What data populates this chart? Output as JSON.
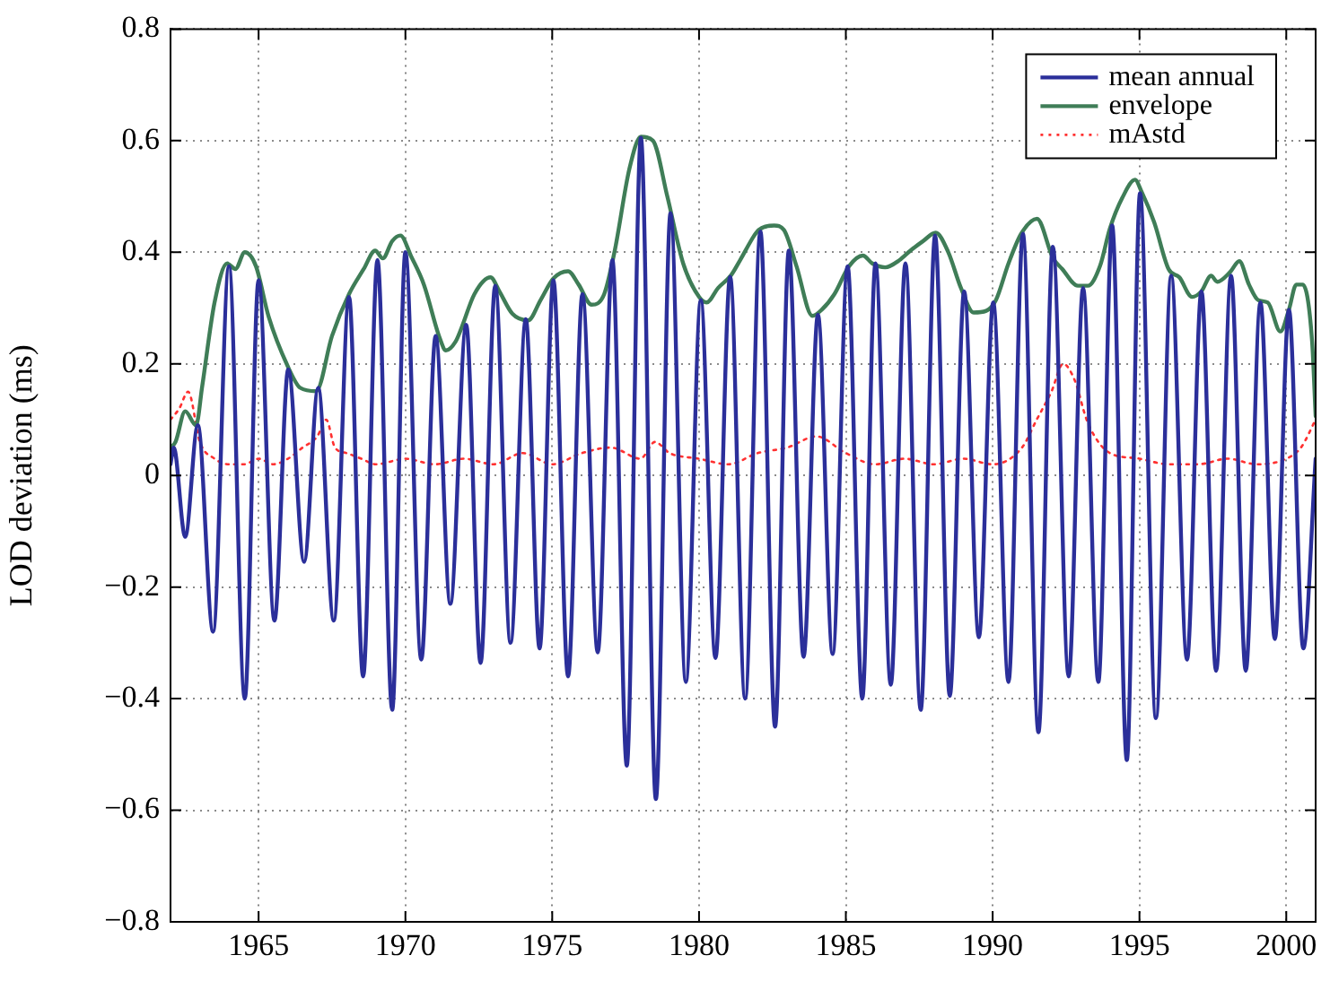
{
  "chart_data": {
    "type": "line",
    "ylabel": "LOD deviation (ms)",
    "xlim": [
      1962,
      2001
    ],
    "ylim": [
      -0.8,
      0.8
    ],
    "xticks": [
      1965,
      1970,
      1975,
      1980,
      1985,
      1990,
      1995,
      2000
    ],
    "yticks": [
      {
        "value": -0.8,
        "label": "−0.8"
      },
      {
        "value": -0.6,
        "label": "−0.6"
      },
      {
        "value": -0.4,
        "label": "−0.4"
      },
      {
        "value": -0.2,
        "label": "−0.2"
      },
      0,
      0.2,
      0.4,
      0.6,
      0.8
    ],
    "grid": true,
    "legend": "top right",
    "series": [
      {
        "name": "mean annual",
        "color": "#2b2f9a",
        "line_style": "solid",
        "x": [
          1962.0,
          1962.11,
          1962.5,
          1962.93,
          1963.45,
          1963.99,
          1964.53,
          1965.0,
          1965.54,
          1966.01,
          1966.55,
          1967.03,
          1967.56,
          1968.08,
          1968.56,
          1969.05,
          1969.55,
          1970.0,
          1970.54,
          1971.03,
          1971.53,
          1972.07,
          1972.56,
          1973.06,
          1973.58,
          1974.1,
          1974.57,
          1975.04,
          1975.54,
          1976.03,
          1976.55,
          1977.05,
          1977.54,
          1978.02,
          1978.53,
          1979.03,
          1979.55,
          1980.06,
          1980.56,
          1981.06,
          1981.57,
          1982.09,
          1982.59,
          1983.06,
          1983.56,
          1984.05,
          1984.55,
          1985.06,
          1985.56,
          1986.01,
          1986.53,
          1987.03,
          1987.55,
          1988.04,
          1988.54,
          1989.03,
          1989.53,
          1990.02,
          1990.54,
          1991.03,
          1991.56,
          1992.05,
          1992.59,
          1993.08,
          1993.6,
          1994.07,
          1994.57,
          1995.02,
          1995.56,
          1996.08,
          1996.62,
          1997.11,
          1997.61,
          1998.12,
          1998.62,
          1999.12,
          1999.61,
          2000.09,
          2000.58,
          2001.0
        ],
        "values": [
          0.02,
          0.05,
          -0.11,
          0.09,
          -0.28,
          0.375,
          -0.4,
          0.35,
          -0.26,
          0.19,
          -0.155,
          0.157,
          -0.26,
          0.32,
          -0.36,
          0.386,
          -0.42,
          0.4,
          -0.33,
          0.25,
          -0.23,
          0.27,
          -0.336,
          0.34,
          -0.3,
          0.28,
          -0.31,
          0.35,
          -0.36,
          0.325,
          -0.317,
          0.386,
          -0.52,
          0.605,
          -0.58,
          0.47,
          -0.37,
          0.314,
          -0.327,
          0.356,
          -0.4,
          0.437,
          -0.45,
          0.403,
          -0.325,
          0.288,
          -0.32,
          0.375,
          -0.4,
          0.38,
          -0.375,
          0.38,
          -0.42,
          0.43,
          -0.395,
          0.33,
          -0.29,
          0.31,
          -0.37,
          0.433,
          -0.46,
          0.41,
          -0.36,
          0.336,
          -0.37,
          0.448,
          -0.51,
          0.506,
          -0.435,
          0.358,
          -0.33,
          0.33,
          -0.35,
          0.358,
          -0.35,
          0.31,
          -0.293,
          0.297,
          -0.31,
          0.03
        ]
      },
      {
        "name": "envelope",
        "color": "#3f7d57",
        "line_style": "solid",
        "x": [
          1962.0,
          1962.17,
          1962.5,
          1962.87,
          1963.08,
          1963.5,
          1963.93,
          1964.21,
          1964.53,
          1964.91,
          1965.34,
          1965.99,
          1966.42,
          1966.96,
          1967.5,
          1968.08,
          1968.58,
          1968.97,
          1969.23,
          1969.55,
          1969.83,
          1970.2,
          1970.63,
          1971.17,
          1971.38,
          1971.71,
          1971.9,
          1972.35,
          1972.9,
          1973.2,
          1973.64,
          1974.18,
          1974.6,
          1975.04,
          1975.54,
          1975.9,
          1976.34,
          1976.77,
          1977.13,
          1977.63,
          1978.02,
          1978.43,
          1978.92,
          1979.46,
          1980.0,
          1980.26,
          1980.65,
          1981.08,
          1981.4,
          1981.88,
          1982.03,
          1982.56,
          1982.89,
          1983.32,
          1983.86,
          1984.18,
          1984.61,
          1985.11,
          1985.58,
          1985.9,
          1986.34,
          1986.83,
          1987.2,
          1987.63,
          1988.06,
          1988.49,
          1988.92,
          1989.35,
          1989.78,
          1990.11,
          1990.54,
          1990.97,
          1991.51,
          1992.05,
          1992.37,
          1992.9,
          1993.24,
          1993.66,
          1993.99,
          1994.42,
          1994.85,
          1995.06,
          1995.5,
          1995.99,
          1996.36,
          1996.79,
          1997.11,
          1997.44,
          1997.65,
          1998.08,
          1998.4,
          1998.73,
          1999.05,
          1999.37,
          1999.8,
          2000.09,
          2000.34,
          2000.56,
          2000.88,
          2001.0
        ],
        "values": [
          0.05,
          0.06,
          0.115,
          0.09,
          0.16,
          0.31,
          0.38,
          0.37,
          0.4,
          0.375,
          0.285,
          0.196,
          0.157,
          0.151,
          0.25,
          0.325,
          0.37,
          0.403,
          0.389,
          0.42,
          0.43,
          0.392,
          0.342,
          0.246,
          0.224,
          0.24,
          0.263,
          0.325,
          0.355,
          0.33,
          0.29,
          0.278,
          0.314,
          0.353,
          0.366,
          0.342,
          0.306,
          0.325,
          0.403,
          0.55,
          0.607,
          0.6,
          0.5,
          0.38,
          0.32,
          0.31,
          0.336,
          0.358,
          0.386,
          0.43,
          0.44,
          0.448,
          0.44,
          0.375,
          0.286,
          0.297,
          0.325,
          0.375,
          0.394,
          0.38,
          0.373,
          0.386,
          0.403,
          0.42,
          0.435,
          0.4,
          0.336,
          0.292,
          0.295,
          0.314,
          0.38,
          0.433,
          0.46,
          0.39,
          0.37,
          0.34,
          0.34,
          0.376,
          0.442,
          0.498,
          0.53,
          0.51,
          0.454,
          0.37,
          0.355,
          0.32,
          0.33,
          0.358,
          0.347,
          0.364,
          0.384,
          0.342,
          0.314,
          0.31,
          0.258,
          0.297,
          0.342,
          0.342,
          0.24,
          0.106
        ]
      },
      {
        "name": "mAstd",
        "color": "#ff3030",
        "line_style": "dotted",
        "x": [
          1962.0,
          1962.3,
          1962.6,
          1963.0,
          1963.5,
          1964.0,
          1964.5,
          1965.0,
          1965.5,
          1966.0,
          1966.5,
          1967.0,
          1967.3,
          1967.6,
          1968.0,
          1968.5,
          1969.0,
          1970.0,
          1971.0,
          1972.0,
          1973.0,
          1974.0,
          1975.0,
          1976.0,
          1977.0,
          1978.0,
          1978.5,
          1979.0,
          1980.0,
          1981.0,
          1982.0,
          1983.0,
          1984.0,
          1985.0,
          1986.0,
          1987.0,
          1988.0,
          1989.0,
          1990.0,
          1991.0,
          1991.5,
          1992.0,
          1992.4,
          1992.8,
          1993.2,
          1993.6,
          1994.0,
          1995.0,
          1996.0,
          1997.0,
          1998.0,
          1999.0,
          2000.0,
          2000.5,
          2001.0
        ],
        "values": [
          0.1,
          0.12,
          0.15,
          0.06,
          0.03,
          0.02,
          0.02,
          0.03,
          0.02,
          0.03,
          0.05,
          0.07,
          0.1,
          0.05,
          0.04,
          0.03,
          0.02,
          0.03,
          0.02,
          0.03,
          0.02,
          0.04,
          0.02,
          0.04,
          0.05,
          0.03,
          0.06,
          0.04,
          0.03,
          0.02,
          0.04,
          0.05,
          0.07,
          0.04,
          0.02,
          0.03,
          0.02,
          0.03,
          0.02,
          0.05,
          0.1,
          0.15,
          0.2,
          0.17,
          0.1,
          0.06,
          0.04,
          0.03,
          0.02,
          0.02,
          0.03,
          0.02,
          0.03,
          0.05,
          0.1
        ]
      }
    ]
  }
}
